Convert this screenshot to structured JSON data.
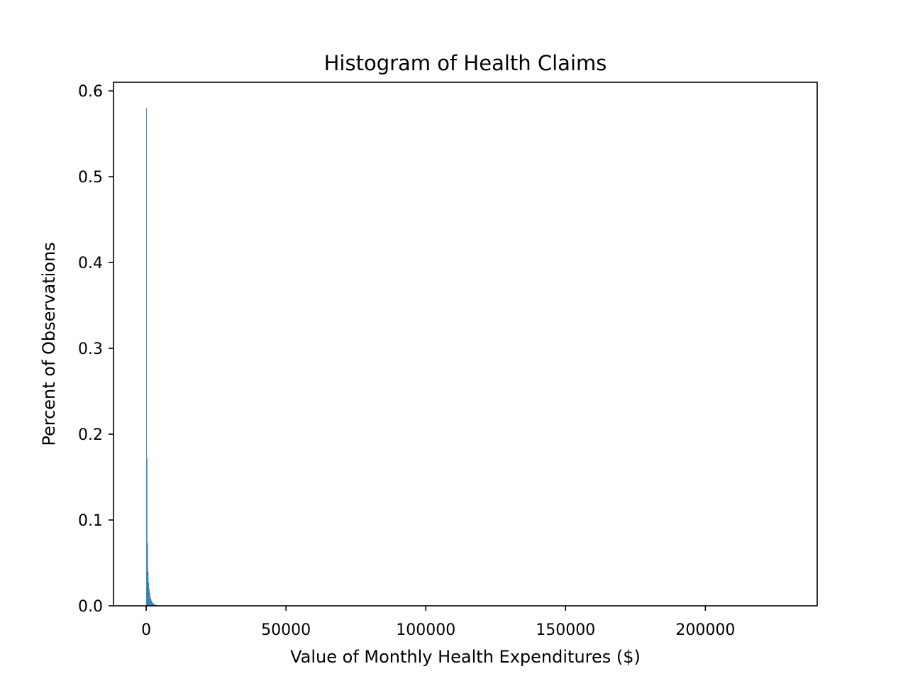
{
  "chart_data": {
    "type": "bar",
    "title": "Histogram of Health Claims",
    "xlabel": "Value of Monthly Health Expenditures ($)",
    "ylabel": "Percent of Observations",
    "xlim": [
      -11700,
      240000
    ],
    "ylim": [
      0,
      0.61
    ],
    "xticks": [
      0,
      50000,
      100000,
      150000,
      200000
    ],
    "xtick_labels": [
      "0",
      "50000",
      "100000",
      "150000",
      "200000"
    ],
    "yticks": [
      0.0,
      0.1,
      0.2,
      0.3,
      0.4,
      0.5,
      0.6
    ],
    "ytick_labels": [
      "0.0",
      "0.1",
      "0.2",
      "0.3",
      "0.4",
      "0.5",
      "0.6"
    ],
    "grid": false,
    "legend": "none",
    "bar_color": "#1f77b4",
    "bin_width": 200,
    "bins": [
      {
        "x0": 0,
        "x1": 200,
        "value": 0.58
      },
      {
        "x0": 200,
        "x1": 400,
        "value": 0.172
      },
      {
        "x0": 400,
        "x1": 600,
        "value": 0.073
      },
      {
        "x0": 600,
        "x1": 800,
        "value": 0.04
      },
      {
        "x0": 800,
        "x1": 1000,
        "value": 0.027
      },
      {
        "x0": 1000,
        "x1": 1200,
        "value": 0.02
      },
      {
        "x0": 1200,
        "x1": 1400,
        "value": 0.015
      },
      {
        "x0": 1400,
        "x1": 1600,
        "value": 0.011
      },
      {
        "x0": 1600,
        "x1": 1800,
        "value": 0.008
      },
      {
        "x0": 1800,
        "x1": 2000,
        "value": 0.006
      },
      {
        "x0": 2000,
        "x1": 2200,
        "value": 0.0048
      },
      {
        "x0": 2200,
        "x1": 2400,
        "value": 0.0038
      },
      {
        "x0": 2400,
        "x1": 2600,
        "value": 0.003
      },
      {
        "x0": 2600,
        "x1": 2800,
        "value": 0.0024
      },
      {
        "x0": 2800,
        "x1": 3000,
        "value": 0.0019
      },
      {
        "x0": 3000,
        "x1": 3200,
        "value": 0.0015
      },
      {
        "x0": 3200,
        "x1": 3400,
        "value": 0.0012
      },
      {
        "x0": 3400,
        "x1": 3600,
        "value": 0.001
      },
      {
        "x0": 3600,
        "x1": 3800,
        "value": 0.0008
      },
      {
        "x0": 3800,
        "x1": 4000,
        "value": 0.0006
      }
    ]
  }
}
